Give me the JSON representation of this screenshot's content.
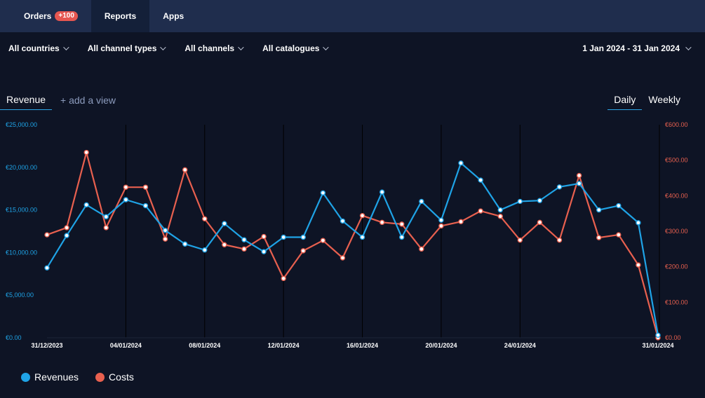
{
  "nav": {
    "tabs": [
      {
        "label": "Orders",
        "badge": "+100",
        "active": false
      },
      {
        "label": "Reports",
        "active": true
      },
      {
        "label": "Apps",
        "active": false
      }
    ]
  },
  "filters": {
    "countries": "All countries",
    "channel_types": "All channel types",
    "channels": "All channels",
    "catalogues": "All catalogues",
    "date_range": "1 Jan 2024 - 31 Jan 2024"
  },
  "views": {
    "active": "Revenue",
    "add": "+ add a view"
  },
  "granularity": {
    "daily": "Daily",
    "weekly": "Weekly",
    "selected": "Daily"
  },
  "legend": {
    "revenues": "Revenues",
    "costs": "Costs"
  },
  "colors": {
    "revenues": "#1fa3e6",
    "costs": "#e8604f"
  },
  "chart_data": {
    "type": "line",
    "x": [
      "31/12/2023",
      "01/01/2024",
      "02/01/2024",
      "03/01/2024",
      "04/01/2024",
      "05/01/2024",
      "06/01/2024",
      "07/01/2024",
      "08/01/2024",
      "09/01/2024",
      "10/01/2024",
      "11/01/2024",
      "12/01/2024",
      "13/01/2024",
      "14/01/2024",
      "15/01/2024",
      "16/01/2024",
      "17/01/2024",
      "18/01/2024",
      "19/01/2024",
      "20/01/2024",
      "21/01/2024",
      "22/01/2024",
      "23/01/2024",
      "24/01/2024",
      "25/01/2024",
      "26/01/2024",
      "27/01/2024",
      "28/01/2024",
      "29/01/2024",
      "30/01/2024",
      "31/01/2024"
    ],
    "x_tick_labels": [
      "31/12/2023",
      "04/01/2024",
      "08/01/2024",
      "12/01/2024",
      "16/01/2024",
      "20/01/2024",
      "24/01/2024",
      "31/01/2024"
    ],
    "series": [
      {
        "name": "Revenues",
        "axis": "left",
        "values": [
          8200,
          12000,
          15600,
          14200,
          16200,
          15500,
          12600,
          11000,
          10300,
          13400,
          11500,
          10100,
          11800,
          11800,
          17000,
          13700,
          11800,
          17100,
          11800,
          16000,
          13800,
          20500,
          18500,
          15000,
          16000,
          16100,
          17700,
          18100,
          15000,
          15500,
          13500,
          300
        ]
      },
      {
        "name": "Costs",
        "axis": "right",
        "values": [
          290,
          310,
          522,
          310,
          424,
          424,
          278,
          473,
          335,
          262,
          250,
          285,
          167,
          245,
          274,
          225,
          344,
          325,
          320,
          250,
          315,
          327,
          357,
          342,
          275,
          325,
          275,
          457,
          282,
          290,
          205,
          0
        ]
      }
    ],
    "y_left": {
      "min": 0,
      "max": 25000,
      "tick_labels": [
        "€0.00",
        "€5,000.00",
        "€10,000.00",
        "€15,000.00",
        "€20,000.00",
        "€25,000.00"
      ]
    },
    "y_right": {
      "min": 0,
      "max": 600,
      "tick_labels": [
        "€0.00",
        "€100.00",
        "€200.00",
        "€300.00",
        "€400.00",
        "€500.00",
        "€600.00"
      ]
    },
    "grid": "vertical",
    "legend_position": "bottom-left"
  }
}
